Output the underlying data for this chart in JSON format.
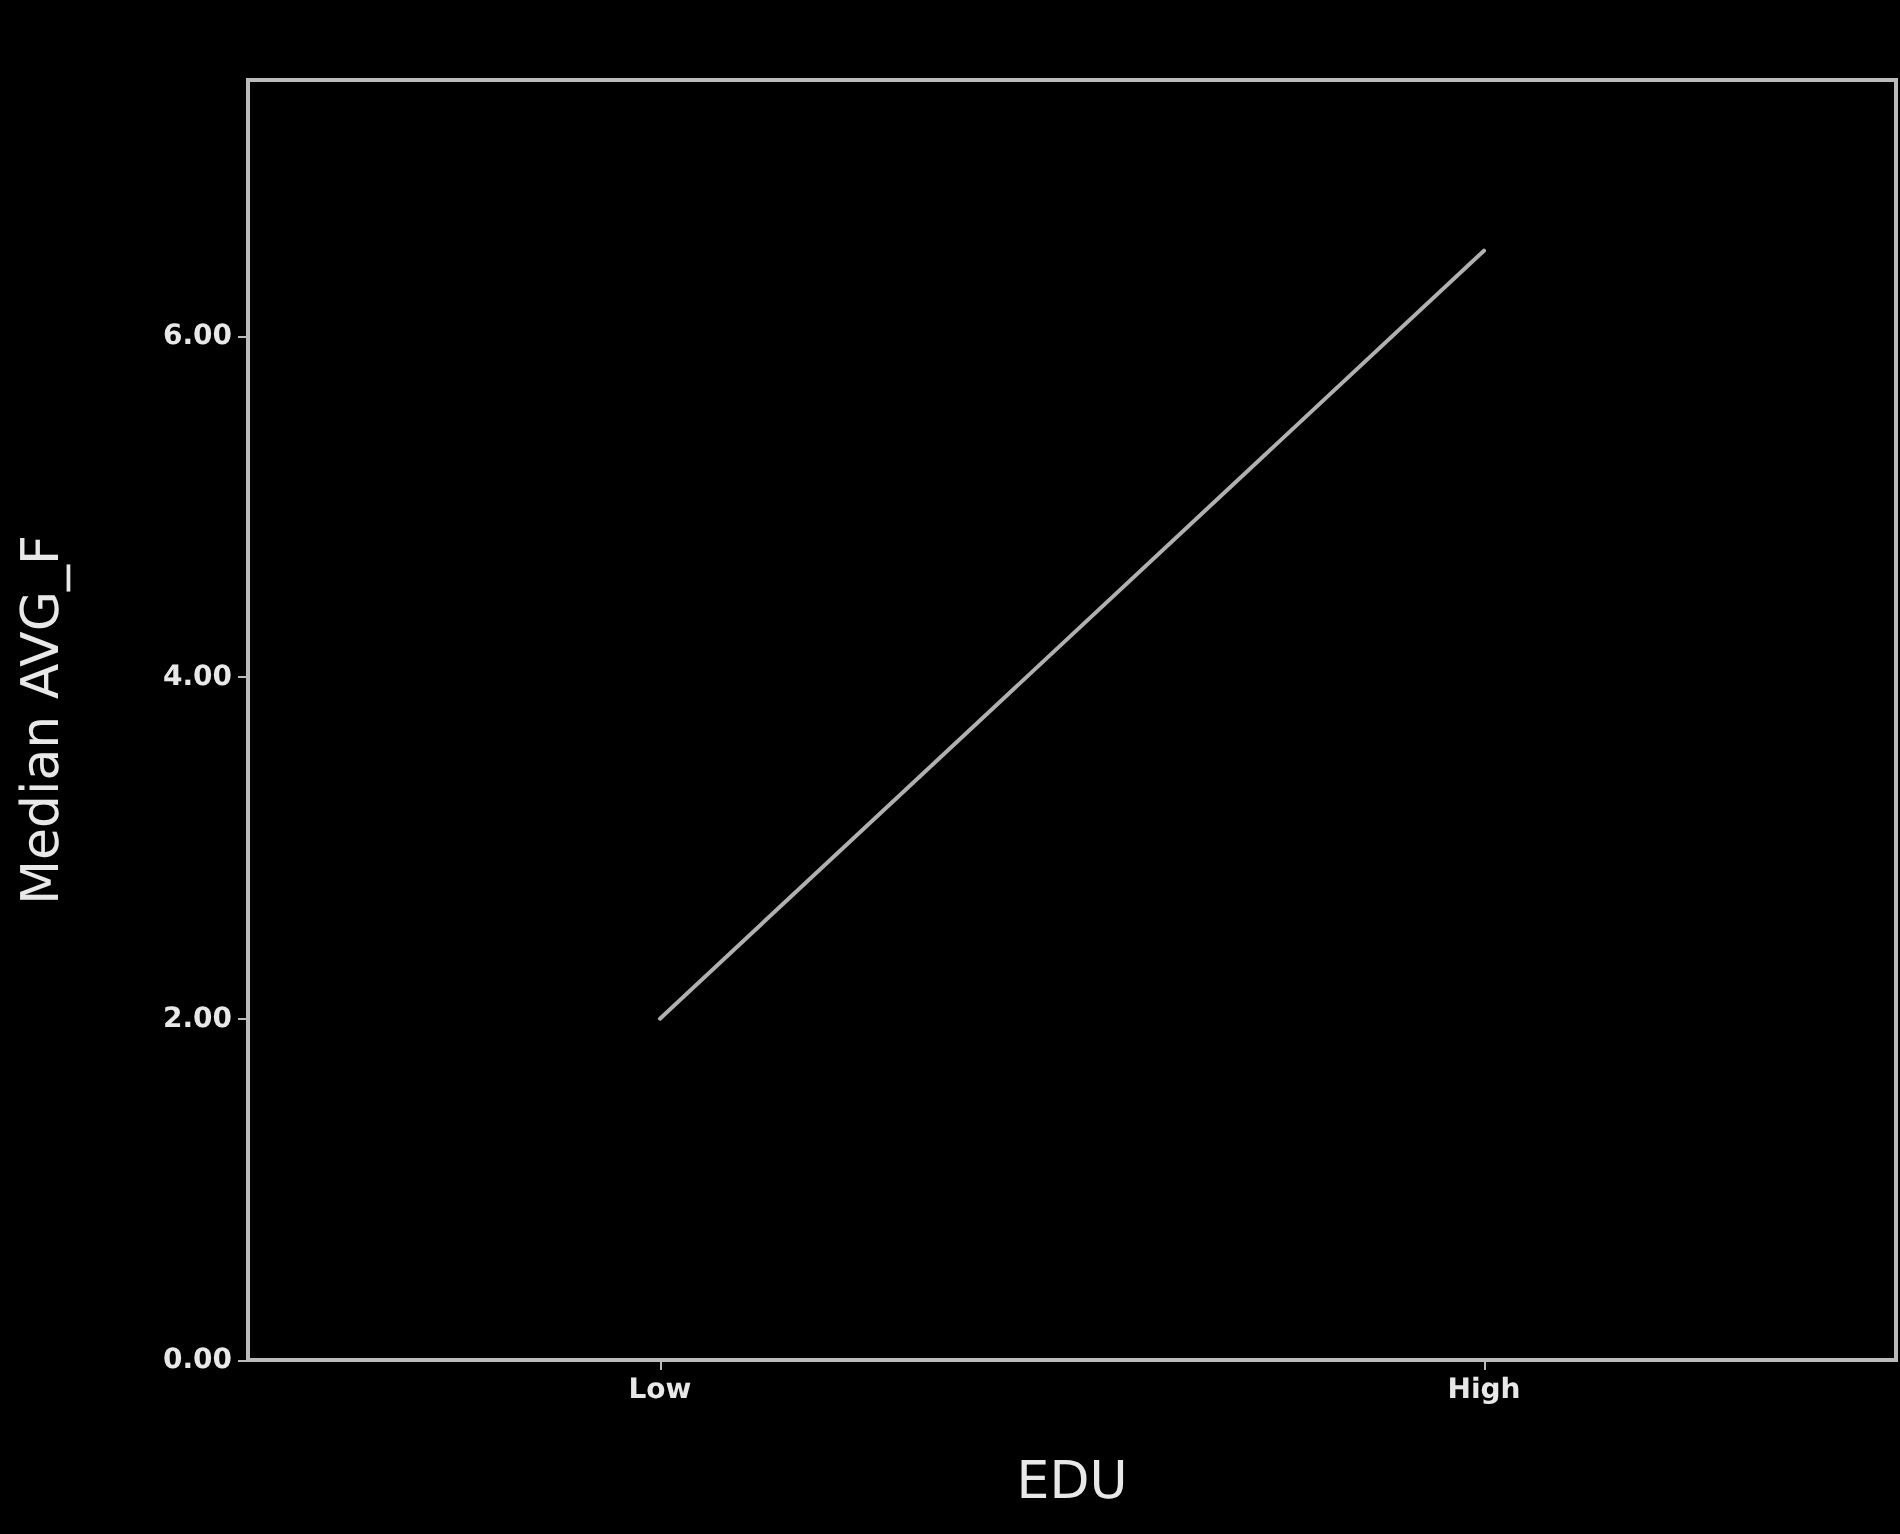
{
  "chart_data": {
    "type": "line",
    "xlabel": "EDU",
    "ylabel": "Median AVG_F",
    "categories": [
      "Low",
      "High"
    ],
    "series": [
      {
        "color": "#b0b0b0",
        "values": [
          2.0,
          6.5
        ]
      }
    ],
    "ylim": [
      0,
      7.5
    ],
    "yticks": [
      {
        "value": 0,
        "label": "0.00"
      },
      {
        "value": 2,
        "label": "2.00"
      },
      {
        "value": 4,
        "label": "4.00"
      },
      {
        "value": 6,
        "label": "6.00"
      }
    ],
    "grid": false,
    "marker": "none",
    "line_style": "solid"
  }
}
